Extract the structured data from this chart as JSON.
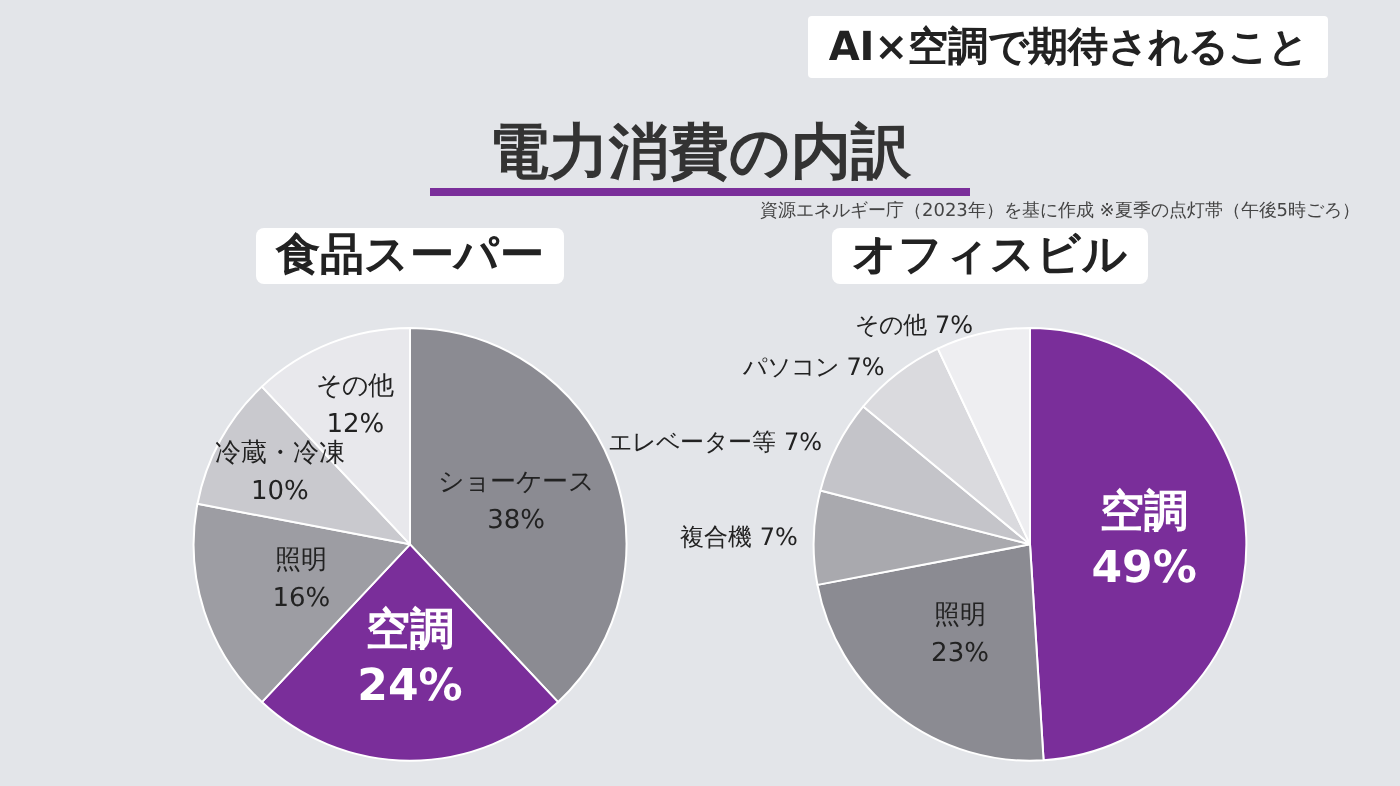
{
  "chart_data": [
    {
      "type": "other",
      "title": "電力消費の内訳",
      "subtitle": "資源エネルギー庁（2023年）を基に作成 ※夏季の点灯帯（午後5時ごろ）",
      "annotations": [
        "AI×空調で期待されること"
      ]
    },
    {
      "type": "pie",
      "title": "食品スーパー",
      "categories": [
        "ショーケース",
        "空調",
        "照明",
        "冷蔵・冷凍",
        "その他"
      ],
      "values": [
        38,
        24,
        16,
        10,
        12
      ],
      "value_labels": [
        "38%",
        "24%",
        "16%",
        "10%",
        "12%"
      ],
      "colors": [
        "#8b8b92",
        "#7a2e9a",
        "#9d9da3",
        "#c9c9ce",
        "#e8e8ec"
      ]
    },
    {
      "type": "pie",
      "title": "オフィスビル",
      "categories": [
        "空調",
        "照明",
        "複合機",
        "エレベーター等",
        "パソコン",
        "その他"
      ],
      "values": [
        49,
        23,
        7,
        7,
        7,
        7
      ],
      "value_labels": [
        "49%",
        "23%",
        "7%",
        "7%",
        "7%",
        "7%"
      ],
      "colors": [
        "#7a2e9a",
        "#8b8b92",
        "#a9a9ae",
        "#c4c4c9",
        "#dadade",
        "#eeeef1"
      ]
    }
  ]
}
